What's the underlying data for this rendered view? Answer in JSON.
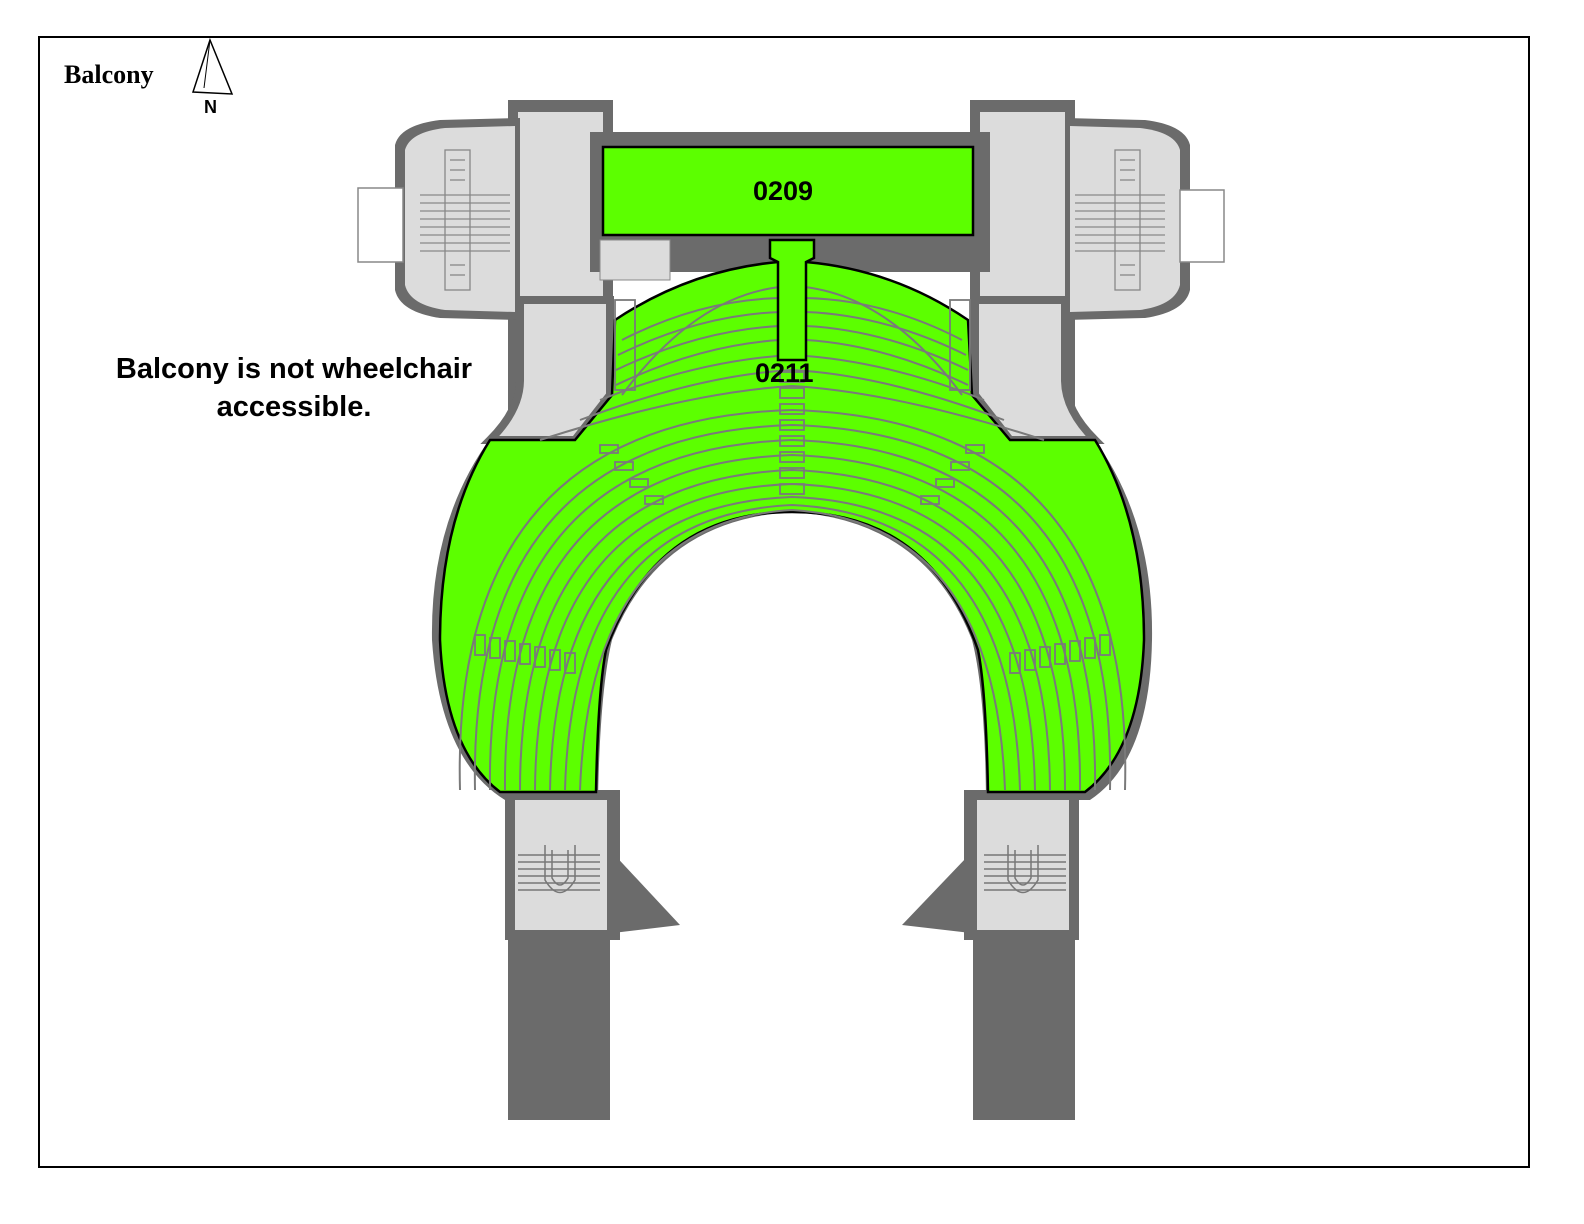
{
  "title": "Balcony",
  "north_label": "N",
  "note": "Balcony is not wheelchair accessible.",
  "rooms": [
    {
      "id": "0209",
      "label": "0209"
    },
    {
      "id": "0211",
      "label": "0211"
    }
  ],
  "colors": {
    "highlight": "#5cff00",
    "wall": "#6b6b6b",
    "floor": "#dcdcdc",
    "line": "#888888",
    "outline": "#000000"
  }
}
